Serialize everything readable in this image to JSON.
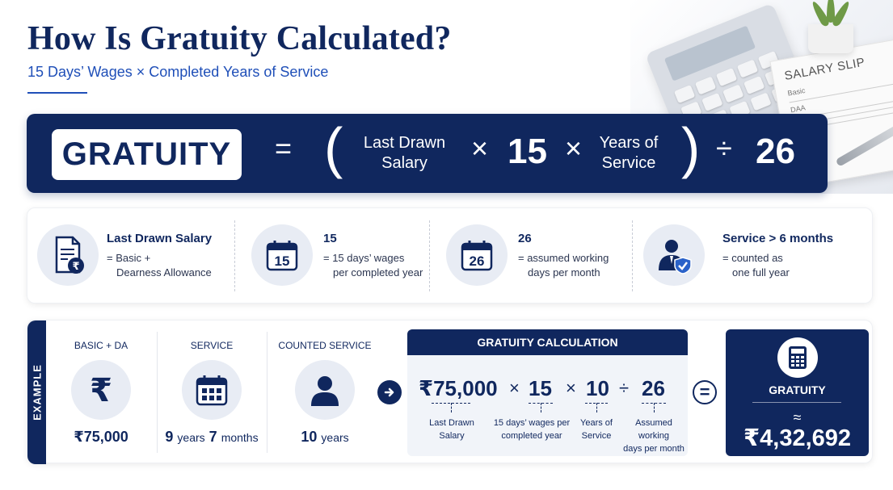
{
  "header": {
    "title": "How Is Gratuity Calculated?",
    "subtitle": "15 Days’ Wages × Completed Years of Service"
  },
  "decor": {
    "slip_title": "SALARY SLIP",
    "slip_line1": "Basic",
    "slip_line2": "DAA"
  },
  "formula": {
    "label": "GRATUITY",
    "equals": "=",
    "open_paren": "(",
    "last_drawn_line1": "Last Drawn",
    "last_drawn_line2": "Salary",
    "times1": "×",
    "fifteen": "15",
    "times2": "×",
    "years_line1": "Years of",
    "years_line2": "Service",
    "close_paren": ")",
    "divide": "÷",
    "twentysix": "26"
  },
  "info": [
    {
      "title": "Last Drawn Salary",
      "line1": "= Basic +",
      "line2": "Dearness Allowance",
      "icon": "salary-document-icon"
    },
    {
      "title": "15",
      "line1": "= 15 days’ wages",
      "line2": "per completed year",
      "icon": "calendar-15-icon",
      "calendar_number": "15"
    },
    {
      "title": "26",
      "line1": "= assumed working",
      "line2": "days per month",
      "icon": "calendar-26-icon",
      "calendar_number": "26"
    },
    {
      "title": "Service > 6 months",
      "line1": "= counted as",
      "line2": "one full year",
      "icon": "employee-shield-icon"
    }
  ],
  "example": {
    "tab_label": "EXAMPLE",
    "columns": [
      {
        "label": "BASIC + DA",
        "value": "₹75,000",
        "icon": "rupee-icon"
      },
      {
        "label": "SERVICE",
        "value_num1": "9",
        "value_unit1": "years",
        "value_num2": "7",
        "value_unit2": "months",
        "icon": "calendar-icon"
      },
      {
        "label": "COUNTED SERVICE",
        "value_num": "10",
        "value_unit": "years",
        "icon": "person-icon"
      }
    ],
    "calculation": {
      "heading": "GRATUITY CALCULATION",
      "salary": "₹75,000",
      "times1": "×",
      "fifteen": "15",
      "times2": "×",
      "ten": "10",
      "divide": "÷",
      "twentysix": "26",
      "sub_salary_1": "Last Drawn",
      "sub_salary_2": "Salary",
      "sub_fifteen_1": "15 days’ wages per",
      "sub_fifteen_2": "completed year",
      "sub_ten_1": "Years of",
      "sub_ten_2": "Service",
      "sub_26_1": "Assumed working",
      "sub_26_2": "days per month"
    },
    "equals": "=",
    "result": {
      "label": "GRATUITY",
      "approx": "≈",
      "value": "₹4,32,692",
      "icon": "calculator-icon"
    }
  },
  "colors": {
    "navy": "#10275e",
    "accent_blue": "#1f4fb8",
    "light_circle": "#e8ecf4"
  }
}
